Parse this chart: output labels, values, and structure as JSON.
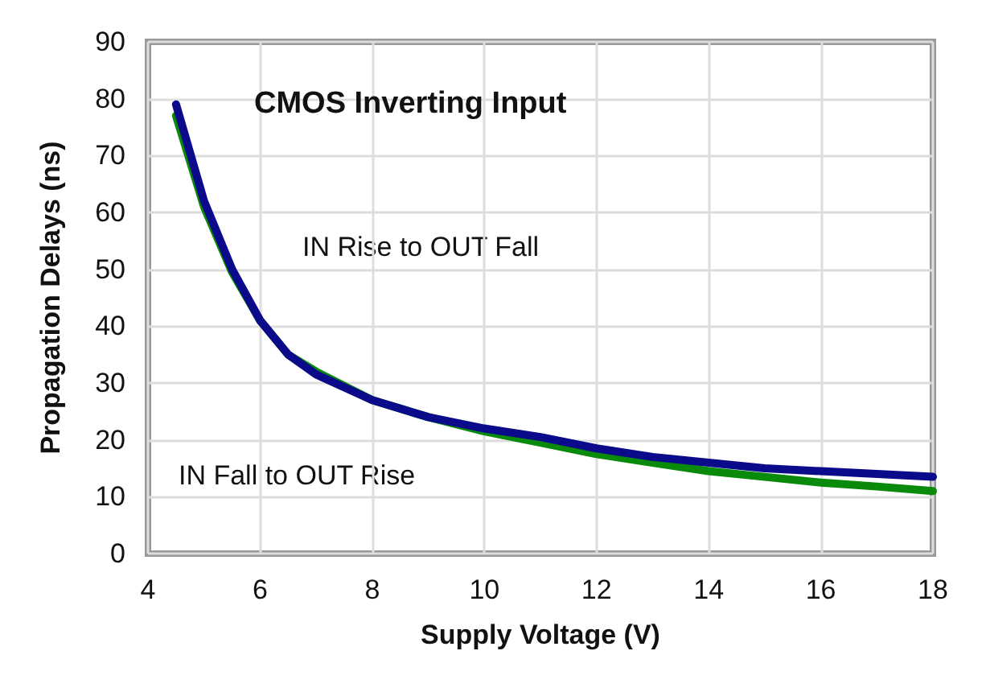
{
  "chart_data": {
    "type": "line",
    "title": "CMOS Inverting Input",
    "xlabel": "Supply Voltage (V)",
    "ylabel": "Propagation Delays (ns)",
    "x": [
      4.5,
      5,
      5.5,
      6,
      6.5,
      7,
      8,
      9,
      10,
      11,
      12,
      13,
      14,
      15,
      16,
      17,
      18
    ],
    "series": [
      {
        "color": "#0a8a0a",
        "values": [
          77,
          61,
          49.5,
          41,
          35,
          32,
          27,
          24,
          21.5,
          19.5,
          17.5,
          16,
          14.5,
          13.5,
          12.5,
          11.8,
          11
        ]
      },
      {
        "color": "#0a0a8a",
        "values": [
          79,
          62,
          50,
          41,
          35,
          31.5,
          27,
          24,
          22,
          20.5,
          18.5,
          17,
          16,
          15,
          14.5,
          14,
          13.5
        ]
      }
    ],
    "xlim": [
      4,
      18
    ],
    "xticks": [
      4,
      6,
      8,
      10,
      12,
      14,
      16,
      18
    ],
    "ylim": [
      0,
      90
    ],
    "yticks": [
      0,
      10,
      20,
      30,
      40,
      50,
      60,
      70,
      80,
      90
    ],
    "grid": true,
    "marker": "none",
    "line_style": "solid",
    "annotations": [
      "IN Rise to OUT Fall",
      "IN Fall to OUT Rise"
    ]
  }
}
